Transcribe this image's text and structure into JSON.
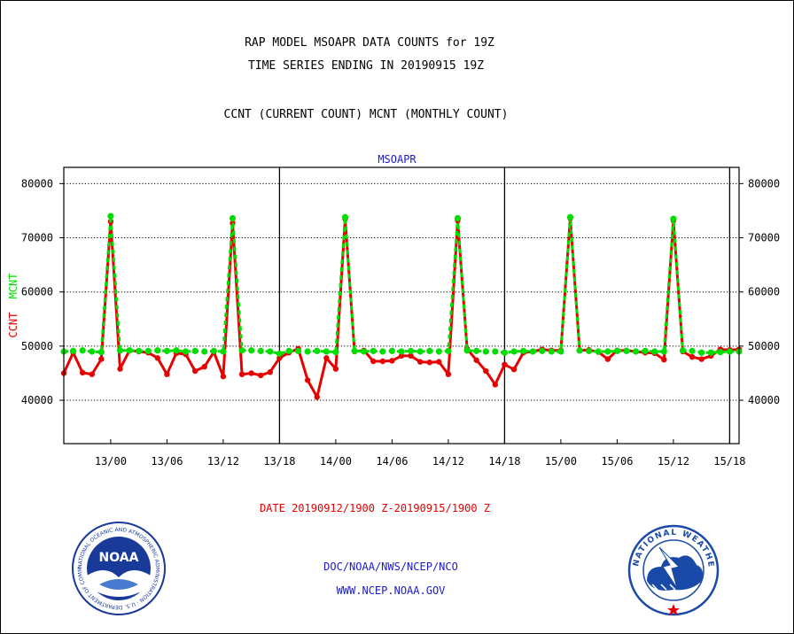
{
  "chart_data": {
    "type": "line",
    "title_lines": [
      "RAP MODEL MSOAPR DATA COUNTS for 19Z",
      "TIME SERIES ENDING IN 20190915 19Z"
    ],
    "subtitle": "CCNT (CURRENT COUNT) MCNT (MONTHLY COUNT)",
    "plot_label": "MSOAPR",
    "ylabel_ccnt": "CCNT",
    "ylabel_mcnt": "MCNT",
    "xlabel": "DATE 20190912/1900 Z-20190915/1900 Z",
    "x_tick_labels": [
      "13/00",
      "13/06",
      "13/12",
      "13/18",
      "14/00",
      "14/06",
      "14/12",
      "14/18",
      "15/00",
      "15/06",
      "15/12",
      "15/18"
    ],
    "x_tick_hours": [
      5,
      11,
      17,
      23,
      29,
      35,
      41,
      47,
      53,
      59,
      65,
      71
    ],
    "y_tick_labels": [
      "40000",
      "50000",
      "60000",
      "70000",
      "80000"
    ],
    "y_ticks": [
      40000,
      50000,
      60000,
      70000,
      80000
    ],
    "ylim": [
      32000,
      83000
    ],
    "xlim_hours": [
      0,
      72
    ],
    "day_boundaries_hours": [
      23,
      47,
      71
    ],
    "grid": "horizontal dotted",
    "series": [
      {
        "name": "CCNT",
        "color": "#e60000",
        "hours": [
          0,
          1,
          2,
          3,
          4,
          5,
          6,
          7,
          8,
          9,
          10,
          11,
          12,
          13,
          14,
          15,
          16,
          17,
          18,
          19,
          20,
          21,
          22,
          23,
          24,
          25,
          26,
          27,
          28,
          29,
          30,
          31,
          32,
          33,
          34,
          35,
          36,
          37,
          38,
          39,
          40,
          41,
          42,
          43,
          44,
          45,
          46,
          47,
          48,
          49,
          50,
          51,
          52,
          53,
          54,
          55,
          56,
          57,
          58,
          59,
          60,
          61,
          62,
          63,
          64,
          65,
          66,
          67,
          68,
          69,
          70,
          71,
          72
        ],
        "values": [
          45000,
          48800,
          45100,
          44800,
          47600,
          73000,
          45800,
          49200,
          49000,
          48800,
          47800,
          44800,
          48700,
          48500,
          45400,
          46200,
          48900,
          44400,
          72700,
          44800,
          45000,
          44600,
          45200,
          47800,
          48800,
          49500,
          43700,
          40600,
          47800,
          45800,
          73500,
          49000,
          49200,
          47200,
          47200,
          47300,
          48200,
          48200,
          47100,
          47000,
          47100,
          44800,
          73200,
          49500,
          47400,
          45400,
          42900,
          46600,
          45700,
          48800,
          49000,
          49400,
          49200,
          49200,
          73600,
          49200,
          49300,
          48900,
          47600,
          49200,
          49200,
          49000,
          48800,
          48700,
          47500,
          73200,
          49000,
          48000,
          47600,
          48200,
          49400,
          49300,
          49400
        ]
      },
      {
        "name": "MCNT",
        "color": "#00dd00",
        "hours": [
          0,
          1,
          2,
          3,
          4,
          5,
          6,
          7,
          8,
          9,
          10,
          11,
          12,
          13,
          14,
          15,
          16,
          17,
          18,
          19,
          20,
          21,
          22,
          23,
          24,
          25,
          26,
          27,
          28,
          29,
          30,
          31,
          32,
          33,
          34,
          35,
          36,
          37,
          38,
          39,
          40,
          41,
          42,
          43,
          44,
          45,
          46,
          47,
          48,
          49,
          50,
          51,
          52,
          53,
          54,
          55,
          56,
          57,
          58,
          59,
          60,
          61,
          62,
          63,
          64,
          65,
          66,
          67,
          68,
          69,
          70,
          71,
          72
        ],
        "values": [
          49000,
          49100,
          49200,
          49000,
          48900,
          74000,
          49200,
          49200,
          49100,
          49100,
          49200,
          49100,
          49200,
          49000,
          49100,
          49000,
          49100,
          49000,
          73600,
          49200,
          49200,
          49100,
          49000,
          48600,
          49100,
          49100,
          49000,
          49100,
          49000,
          48900,
          73800,
          49100,
          49000,
          49100,
          49000,
          49100,
          49000,
          49100,
          49000,
          49100,
          49000,
          49100,
          73600,
          49200,
          49100,
          49000,
          49000,
          48800,
          49000,
          49100,
          49000,
          49100,
          49000,
          49000,
          73800,
          49200,
          49100,
          49000,
          49000,
          49100,
          49100,
          49000,
          49100,
          49000,
          49000,
          73500,
          49200,
          49100,
          48800,
          48800,
          48900,
          49000,
          49000
        ]
      }
    ]
  },
  "footer": {
    "agency_line": "DOC/NOAA/NWS/NCEP/NCO",
    "website": "WWW.NCEP.NOAA.GOV",
    "noaa_logo_text": "NOAA",
    "nws_logo_text": "NATIONAL WEATHER SERVICE"
  },
  "colors": {
    "ccnt": "#e60000",
    "mcnt": "#00dd00",
    "footer_blue": "#1a1acc",
    "noaa_blue": "#1a3a9a",
    "nws_blue": "#1a4aa8"
  }
}
